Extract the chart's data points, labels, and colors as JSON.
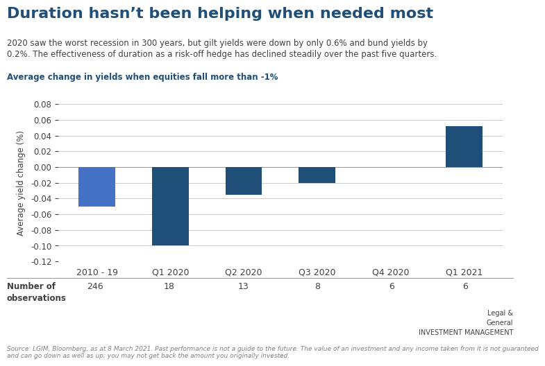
{
  "title": "Duration hasn’t been helping when needed most",
  "subtitle_line1": "2020 saw the worst recession in 300 years, but gilt yields were down by only 0.6% and bund yields by",
  "subtitle_line2": "0.2%. The effectiveness of duration as a risk-off hedge has declined steadily over the past five quarters.",
  "chart_label": "Average change in yields when equities fall more than -1%",
  "categories": [
    "2010 - 19",
    "Q1 2020",
    "Q2 2020",
    "Q3 2020",
    "Q4 2020",
    "Q1 2021"
  ],
  "values": [
    -0.05,
    -0.1,
    -0.035,
    -0.02,
    0.0,
    0.052
  ],
  "bar_colors": [
    "#4472C4",
    "#1F4E79",
    "#1F4E79",
    "#1F4E79",
    "#1F4E79",
    "#1F4E79"
  ],
  "observations": [
    "246",
    "18",
    "13",
    "8",
    "6",
    "6"
  ],
  "ylabel": "Average yield change (%)",
  "ylim": [
    -0.12,
    0.08
  ],
  "yticks": [
    -0.12,
    -0.1,
    -0.08,
    -0.06,
    -0.04,
    -0.02,
    0.0,
    0.02,
    0.04,
    0.06,
    0.08
  ],
  "title_color": "#1F4E79",
  "label_color": "#1F4E79",
  "subtitle_color": "#404040",
  "obs_label": "Number of\nobservations",
  "footnote": "Source: LGIM, Bloomberg, as at 8 March 2021. Past performance is not a guide to the future. The value of an investment and any income taken from it is not guaranteed\nand can go down as well as up; you may not get back the amount you originally invested.",
  "bg_color": "#FFFFFF",
  "grid_color": "#CCCCCC"
}
